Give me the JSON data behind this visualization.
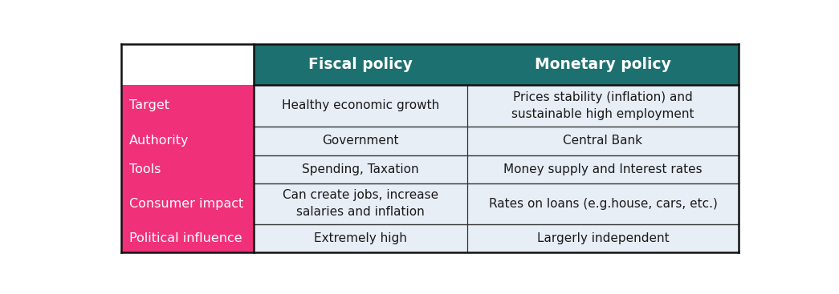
{
  "header_bg": "#1d7070",
  "header_text_color": "#ffffff",
  "row_label_bg": "#f0317a",
  "row_label_text_color": "#ffffff",
  "cell_bg": "#e8eef6",
  "divider_color": "#333333",
  "headers": [
    "Fiscal policy",
    "Monetary policy"
  ],
  "row_labels": [
    "Target",
    "Authority",
    "Tools",
    "Consumer impact",
    "Political influence"
  ],
  "fiscal_data": [
    "Healthy economic growth",
    "Government",
    "Spending, Taxation",
    "Can create jobs, increase\nsalaries and inflation",
    "Extremely high"
  ],
  "monetary_data": [
    "Prices stability (inflation) and\nsustainable high employment",
    "Central Bank",
    "Money supply and Interest rates",
    "Rates on loans (e.g.house, cars, etc.)",
    "Largerly independent"
  ],
  "figsize": [
    10.45,
    3.67
  ],
  "dpi": 100,
  "font_size_header": 13.5,
  "font_size_row_label": 11.5,
  "font_size_cell": 11
}
